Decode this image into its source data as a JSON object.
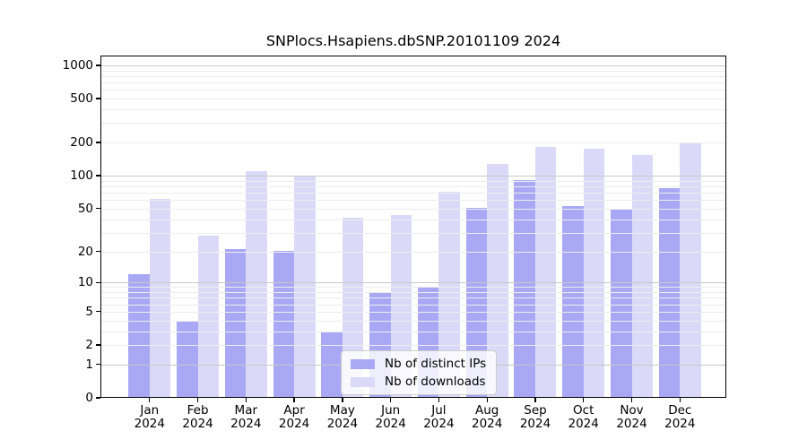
{
  "chart_data": {
    "type": "bar",
    "title": "SNPlocs.Hsapiens.dbSNP.20101109 2024",
    "categories": [
      "Jan",
      "Feb",
      "Mar",
      "Apr",
      "May",
      "Jun",
      "Jul",
      "Aug",
      "Sep",
      "Oct",
      "Nov",
      "Dec"
    ],
    "year": "2024",
    "series": [
      {
        "name": "Nb of distinct IPs",
        "color": "#a8a8f5",
        "values": [
          12,
          4,
          21,
          20,
          3,
          8,
          9,
          51,
          92,
          53,
          50,
          77
        ]
      },
      {
        "name": "Nb of downloads",
        "color": "#dadaf8",
        "values": [
          61,
          28,
          110,
          100,
          41,
          44,
          72,
          127,
          183,
          175,
          154,
          199
        ]
      }
    ],
    "xlabel": "",
    "ylabel": "",
    "yscale": "log1p",
    "ylim": [
      0,
      1225
    ],
    "yticks": [
      0,
      1,
      2,
      5,
      10,
      20,
      50,
      100,
      200,
      500,
      1000
    ],
    "grid": {
      "on": true,
      "major": [
        1,
        10,
        100,
        1000
      ],
      "minor": [
        2,
        3,
        4,
        5,
        6,
        7,
        8,
        9,
        20,
        30,
        40,
        50,
        60,
        70,
        80,
        90,
        200,
        300,
        400,
        500,
        600,
        700,
        800,
        900
      ],
      "major_color": "#c8c8c8",
      "minor_color": "#ededed"
    },
    "legend_position": "lower-center-inset",
    "colors": {
      "frame": "#000000",
      "background": "#ffffff"
    }
  }
}
